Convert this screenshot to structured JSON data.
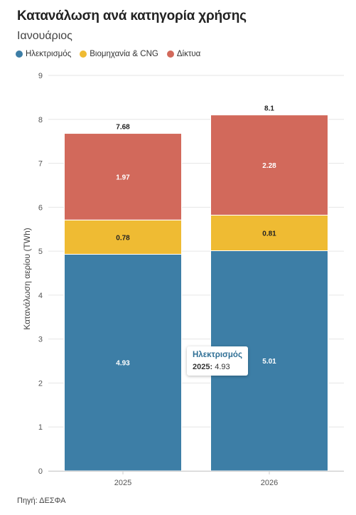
{
  "header": {
    "title": "Κατανάλωση ανά κατηγορία χρήσης",
    "subtitle": "Ιανουάριος"
  },
  "source": "Πηγή: ΔΕΣΦΑ",
  "tooltip": {
    "series": "Ηλεκτρισμός",
    "category": "2025:",
    "value": "4.93"
  },
  "chart_data": {
    "type": "bar",
    "stacked": true,
    "categories": [
      "2025",
      "2026"
    ],
    "series": [
      {
        "name": "Ηλεκτρισμός",
        "values": [
          4.93,
          5.01
        ],
        "color": "#3d7ea6"
      },
      {
        "name": "Βιομηχανία & CNG",
        "values": [
          0.78,
          0.81
        ],
        "color": "#efbb33"
      },
      {
        "name": "Δίκτυα",
        "values": [
          1.97,
          2.28
        ],
        "color": "#d2695b"
      }
    ],
    "totals": [
      7.68,
      8.1
    ],
    "ylabel": "Κατανάλωση αερίου (TWh)",
    "xlabel": "",
    "ylim": [
      0,
      9
    ],
    "yticks": [
      0,
      1,
      2,
      3,
      4,
      5,
      6,
      7,
      8,
      9
    ],
    "grid": true,
    "legend_position": "top-left"
  }
}
